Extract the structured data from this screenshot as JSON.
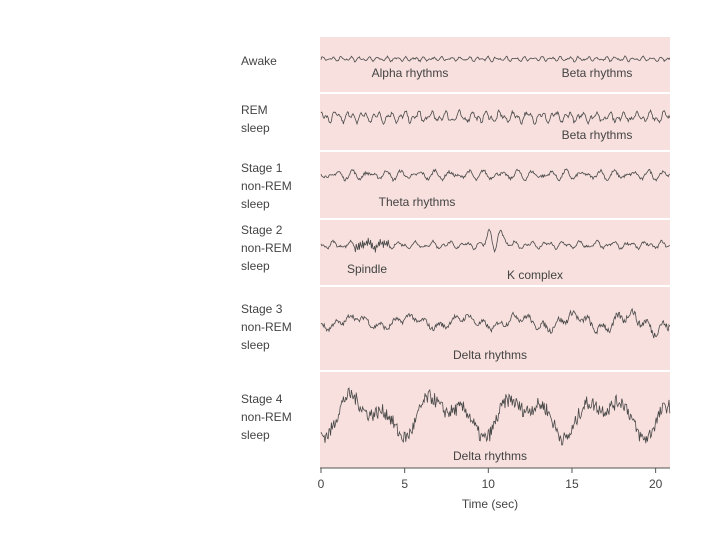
{
  "rows": [
    {
      "label": [
        "Awake"
      ],
      "annotations": [
        "Alpha rhythms",
        "Beta rhythms"
      ]
    },
    {
      "label": [
        "REM",
        "sleep"
      ],
      "annotations": [
        "Beta rhythms"
      ]
    },
    {
      "label": [
        "Stage 1",
        "non-REM",
        "sleep"
      ],
      "annotations": [
        "Theta rhythms"
      ]
    },
    {
      "label": [
        "Stage 2",
        "non-REM",
        "sleep"
      ],
      "annotations": [
        "Spindle",
        "K complex"
      ]
    },
    {
      "label": [
        "Stage 3",
        "non-REM",
        "sleep"
      ],
      "annotations": [
        "Delta rhythms"
      ]
    },
    {
      "label": [
        "Stage 4",
        "non-REM",
        "sleep"
      ],
      "annotations": [
        "Delta rhythms"
      ]
    }
  ],
  "axis": {
    "title": "Time (sec)",
    "xlim": [
      0,
      20.5
    ],
    "xticks": [
      0,
      5,
      10,
      15,
      20
    ]
  }
}
